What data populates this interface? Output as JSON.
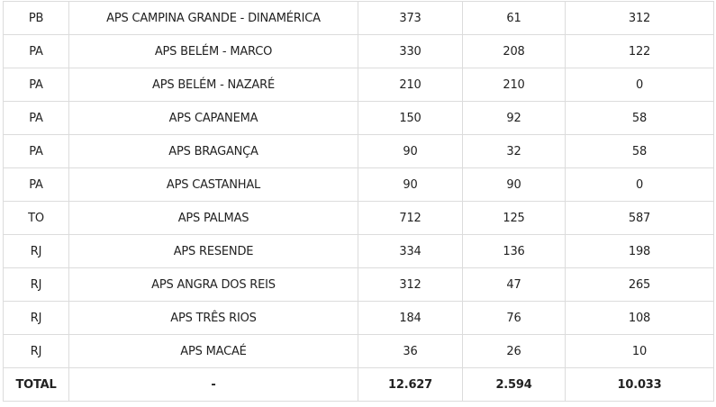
{
  "rows": [
    [
      "PB",
      "APS CAMPINA GRANDE - DINAMÉRICA",
      "373",
      "61",
      "312"
    ],
    [
      "PA",
      "APS BELÉM - MARCO",
      "330",
      "208",
      "122"
    ],
    [
      "PA",
      "APS BELÉM - NAZARÉ",
      "210",
      "210",
      "0"
    ],
    [
      "PA",
      "APS CAPANEMA",
      "150",
      "92",
      "58"
    ],
    [
      "PA",
      "APS BRAGANÇA",
      "90",
      "32",
      "58"
    ],
    [
      "PA",
      "APS CASTANHAL",
      "90",
      "90",
      "0"
    ],
    [
      "TO",
      "APS PALMAS",
      "712",
      "125",
      "587"
    ],
    [
      "RJ",
      "APS RESENDE",
      "334",
      "136",
      "198"
    ],
    [
      "RJ",
      "APS ANGRA DOS REIS",
      "312",
      "47",
      "265"
    ],
    [
      "RJ",
      "APS TRÊS RIOS",
      "184",
      "76",
      "108"
    ],
    [
      "RJ",
      "APS MACAÉ",
      "36",
      "26",
      "10"
    ]
  ],
  "total": [
    "TOTAL",
    "-",
    "12.627",
    "2.594",
    "10.033"
  ]
}
